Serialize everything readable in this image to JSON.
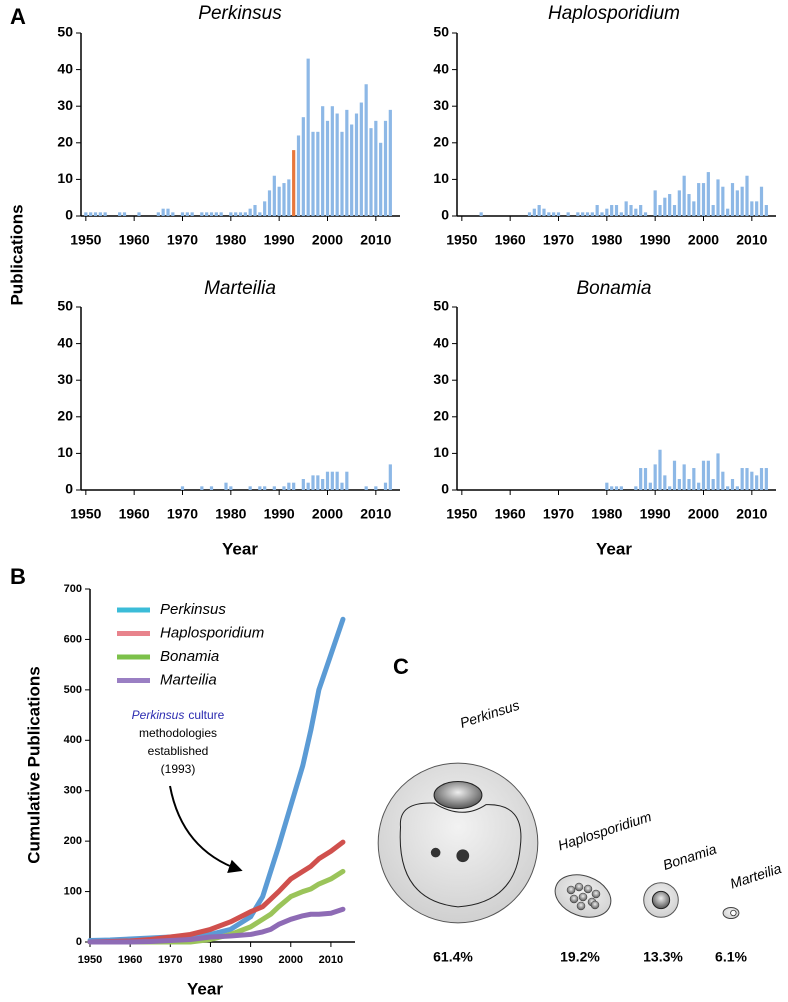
{
  "chart_data": [
    {
      "type": "bar",
      "panel": "A",
      "title": "Perkinsus",
      "ylabel": "Publications",
      "color": "#8db8e6",
      "highlight": {
        "x": 1993,
        "color": "#e8773b"
      },
      "x": [
        1950,
        1951,
        1952,
        1953,
        1954,
        1955,
        1956,
        1957,
        1958,
        1959,
        1960,
        1961,
        1962,
        1963,
        1964,
        1965,
        1966,
        1967,
        1968,
        1969,
        1970,
        1971,
        1972,
        1973,
        1974,
        1975,
        1976,
        1977,
        1978,
        1979,
        1980,
        1981,
        1982,
        1983,
        1984,
        1985,
        1986,
        1987,
        1988,
        1989,
        1990,
        1991,
        1992,
        1993,
        1994,
        1995,
        1996,
        1997,
        1998,
        1999,
        2000,
        2001,
        2002,
        2003,
        2004,
        2005,
        2006,
        2007,
        2008,
        2009,
        2010,
        2011,
        2012,
        2013
      ],
      "values": [
        1,
        1,
        1,
        1,
        1,
        0,
        0,
        1,
        1,
        0,
        0,
        1,
        0,
        0,
        0,
        1,
        2,
        2,
        1,
        0,
        1,
        1,
        1,
        0,
        1,
        1,
        1,
        1,
        1,
        0,
        1,
        1,
        1,
        1,
        2,
        3,
        1,
        4,
        7,
        11,
        8,
        9,
        10,
        18,
        22,
        27,
        43,
        23,
        23,
        30,
        26,
        30,
        28,
        23,
        29,
        25,
        28,
        31,
        36,
        24,
        26,
        20,
        26,
        29
      ],
      "xlim": [
        1949,
        2015
      ],
      "xticks": [
        1950,
        1960,
        1970,
        1980,
        1990,
        2000,
        2010
      ],
      "ylim": [
        0,
        50
      ],
      "yticks": [
        0,
        10,
        20,
        30,
        40,
        50
      ]
    },
    {
      "type": "bar",
      "title": "Haplosporidium",
      "color": "#8db8e6",
      "x": [
        1950,
        1951,
        1952,
        1953,
        1954,
        1955,
        1956,
        1957,
        1958,
        1959,
        1960,
        1961,
        1962,
        1963,
        1964,
        1965,
        1966,
        1967,
        1968,
        1969,
        1970,
        1971,
        1972,
        1973,
        1974,
        1975,
        1976,
        1977,
        1978,
        1979,
        1980,
        1981,
        1982,
        1983,
        1984,
        1985,
        1986,
        1987,
        1988,
        1989,
        1990,
        1991,
        1992,
        1993,
        1994,
        1995,
        1996,
        1997,
        1998,
        1999,
        2000,
        2001,
        2002,
        2003,
        2004,
        2005,
        2006,
        2007,
        2008,
        2009,
        2010,
        2011,
        2012,
        2013
      ],
      "values": [
        0,
        0,
        0,
        0,
        1,
        0,
        0,
        0,
        0,
        0,
        0,
        0,
        0,
        0,
        1,
        2,
        3,
        2,
        1,
        1,
        1,
        0,
        1,
        0,
        1,
        1,
        1,
        1,
        3,
        1,
        2,
        3,
        3,
        1,
        4,
        3,
        2,
        3,
        1,
        0,
        7,
        3,
        5,
        6,
        3,
        7,
        11,
        6,
        4,
        9,
        9,
        12,
        3,
        10,
        8,
        2,
        9,
        7,
        8,
        11,
        4,
        4,
        8,
        3
      ],
      "xlim": [
        1949,
        2015
      ],
      "xticks": [
        1950,
        1960,
        1970,
        1980,
        1990,
        2000,
        2010
      ],
      "ylim": [
        0,
        50
      ],
      "yticks": [
        0,
        10,
        20,
        30,
        40,
        50
      ]
    },
    {
      "type": "bar",
      "title": "Marteilia",
      "xlabel": "Year",
      "color": "#8db8e6",
      "x": [
        1950,
        1951,
        1952,
        1953,
        1954,
        1955,
        1956,
        1957,
        1958,
        1959,
        1960,
        1961,
        1962,
        1963,
        1964,
        1965,
        1966,
        1967,
        1968,
        1969,
        1970,
        1971,
        1972,
        1973,
        1974,
        1975,
        1976,
        1977,
        1978,
        1979,
        1980,
        1981,
        1982,
        1983,
        1984,
        1985,
        1986,
        1987,
        1988,
        1989,
        1990,
        1991,
        1992,
        1993,
        1994,
        1995,
        1996,
        1997,
        1998,
        1999,
        2000,
        2001,
        2002,
        2003,
        2004,
        2005,
        2006,
        2007,
        2008,
        2009,
        2010,
        2011,
        2012,
        2013
      ],
      "values": [
        0,
        0,
        0,
        0,
        0,
        0,
        0,
        0,
        0,
        0,
        0,
        0,
        0,
        0,
        0,
        0,
        0,
        0,
        0,
        0,
        1,
        0,
        0,
        0,
        1,
        0,
        1,
        0,
        0,
        2,
        1,
        0,
        0,
        0,
        1,
        0,
        1,
        1,
        0,
        1,
        0,
        1,
        2,
        2,
        0,
        3,
        2,
        4,
        4,
        3,
        5,
        5,
        5,
        2,
        5,
        0,
        0,
        0,
        1,
        0,
        1,
        0,
        2,
        7
      ],
      "xlim": [
        1949,
        2015
      ],
      "xticks": [
        1950,
        1960,
        1970,
        1980,
        1990,
        2000,
        2010
      ],
      "ylim": [
        0,
        50
      ],
      "yticks": [
        0,
        10,
        20,
        30,
        40,
        50
      ]
    },
    {
      "type": "bar",
      "title": "Bonamia",
      "xlabel": "Year",
      "color": "#8db8e6",
      "x": [
        1950,
        1951,
        1952,
        1953,
        1954,
        1955,
        1956,
        1957,
        1958,
        1959,
        1960,
        1961,
        1962,
        1963,
        1964,
        1965,
        1966,
        1967,
        1968,
        1969,
        1970,
        1971,
        1972,
        1973,
        1974,
        1975,
        1976,
        1977,
        1978,
        1979,
        1980,
        1981,
        1982,
        1983,
        1984,
        1985,
        1986,
        1987,
        1988,
        1989,
        1990,
        1991,
        1992,
        1993,
        1994,
        1995,
        1996,
        1997,
        1998,
        1999,
        2000,
        2001,
        2002,
        2003,
        2004,
        2005,
        2006,
        2007,
        2008,
        2009,
        2010,
        2011,
        2012,
        2013
      ],
      "values": [
        0,
        0,
        0,
        0,
        0,
        0,
        0,
        0,
        0,
        0,
        0,
        0,
        0,
        0,
        0,
        0,
        0,
        0,
        0,
        0,
        0,
        0,
        0,
        0,
        0,
        0,
        0,
        0,
        0,
        0,
        2,
        1,
        1,
        1,
        0,
        0,
        1,
        6,
        6,
        2,
        7,
        11,
        4,
        1,
        8,
        3,
        7,
        3,
        6,
        2,
        8,
        8,
        3,
        10,
        5,
        1,
        3,
        1,
        6,
        6,
        5,
        4,
        6,
        6
      ],
      "xlim": [
        1949,
        2015
      ],
      "xticks": [
        1950,
        1960,
        1970,
        1980,
        1990,
        2000,
        2010
      ],
      "ylim": [
        0,
        50
      ],
      "yticks": [
        0,
        10,
        20,
        30,
        40,
        50
      ]
    },
    {
      "type": "line",
      "panel": "B",
      "xlabel": "Year",
      "ylabel": "Cumulative Publications",
      "x": [
        1950,
        1955,
        1960,
        1965,
        1970,
        1975,
        1980,
        1985,
        1990,
        1993,
        1995,
        1997,
        2000,
        2003,
        2005,
        2007,
        2010,
        2013
      ],
      "series": [
        {
          "name": "Perkinsus",
          "color": "#5b9bd5",
          "legend_color": "#3bbcd8",
          "label_color": "#1f1fb4",
          "values": [
            3,
            4,
            6,
            8,
            10,
            12,
            15,
            25,
            50,
            90,
            140,
            190,
            270,
            350,
            420,
            500,
            570,
            640
          ]
        },
        {
          "name": "Haplosporidium",
          "color": "#d0504d",
          "legend_color": "#e8838c",
          "label_color": "#b22222",
          "values": [
            0,
            1,
            2,
            5,
            10,
            15,
            25,
            40,
            60,
            70,
            85,
            100,
            125,
            140,
            150,
            165,
            180,
            198
          ]
        },
        {
          "name": "Bonamia",
          "color": "#9bc45a",
          "legend_color": "#7cc14a",
          "label_color": "#1b7a2b",
          "values": [
            0,
            0,
            0,
            0,
            0,
            0,
            5,
            15,
            30,
            45,
            55,
            70,
            90,
            100,
            105,
            115,
            125,
            140
          ]
        },
        {
          "name": "Marteilia",
          "color": "#8e6bb5",
          "legend_color": "#9a7fc3",
          "label_color": "#6a2f8f",
          "values": [
            0,
            0,
            0,
            1,
            3,
            5,
            10,
            12,
            15,
            20,
            25,
            35,
            45,
            52,
            55,
            55,
            57,
            65
          ]
        }
      ],
      "annotation": {
        "emphasis": "Perkinsus",
        "lines": [
          "culture",
          "methodologies",
          "established",
          "(1993)"
        ],
        "color": "#2a2ab0"
      },
      "xlim": [
        1950,
        2016
      ],
      "xticks": [
        1950,
        1960,
        1970,
        1980,
        1990,
        2000,
        2010
      ],
      "ylim": [
        0,
        700
      ],
      "yticks": [
        0,
        100,
        200,
        300,
        400,
        500,
        600,
        700
      ]
    },
    {
      "type": "proportion",
      "panel": "C",
      "categories": [
        "Perkinsus",
        "Haplosporidium",
        "Bonamia",
        "Marteilia"
      ],
      "values": [
        61.4,
        19.2,
        13.3,
        6.1
      ],
      "value_labels": [
        "61.4%",
        "19.2%",
        "13.3%",
        "6.1%"
      ],
      "colors": [
        "#2a2ac0",
        "#d04a40",
        "#238a3a",
        "#6a2aa0"
      ]
    }
  ]
}
